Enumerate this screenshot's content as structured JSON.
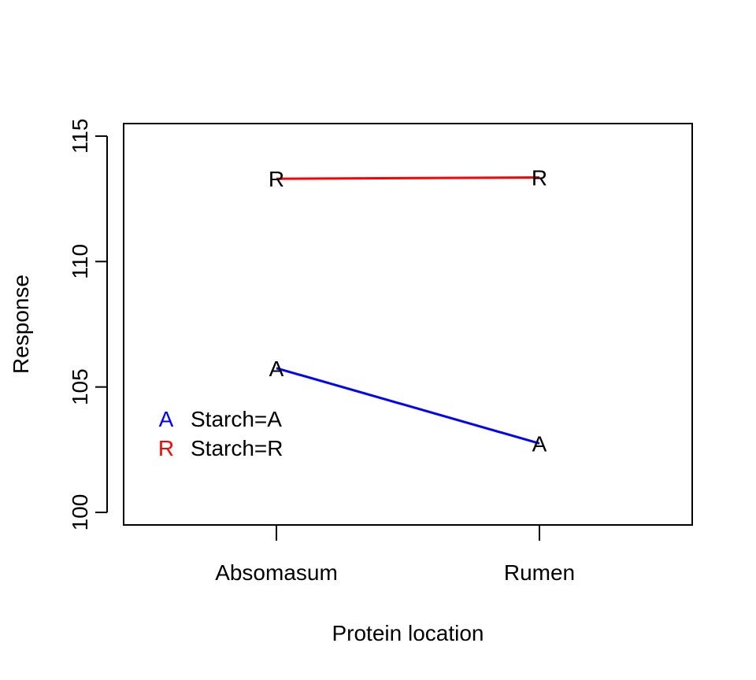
{
  "chart_data": {
    "type": "line",
    "title": "",
    "xlabel": "Protein location",
    "ylabel": "Response",
    "categories": [
      "Absomasum",
      "Rumen"
    ],
    "ylim": [
      99.5,
      115.5
    ],
    "yticks": [
      100,
      105,
      110,
      115
    ],
    "grid": false,
    "legend_position": "bottom-left",
    "series": [
      {
        "name": "Starch=A",
        "symbol": "A",
        "color": "#0000ff",
        "values": [
          105.75,
          102.75
        ]
      },
      {
        "name": "Starch=R",
        "symbol": "R",
        "color": "#ff0000",
        "values": [
          113.3,
          113.35
        ]
      }
    ]
  }
}
